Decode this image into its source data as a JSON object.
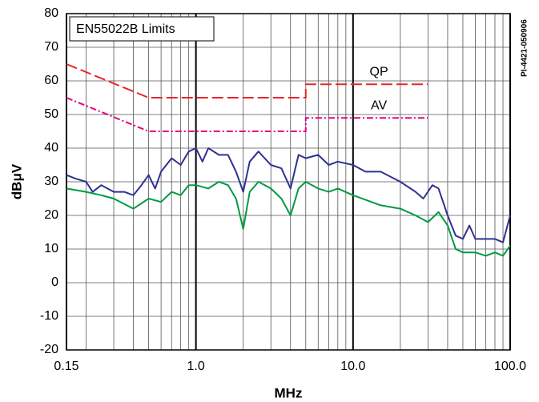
{
  "chart_data": {
    "type": "line",
    "annotation": "EN55022B Limits",
    "side_note": "PI-4421-050906",
    "xlabel": "MHz",
    "ylabel": "dBμV",
    "xscale": "log",
    "xlim": [
      0.15,
      100
    ],
    "xticks": [
      0.15,
      {
        "value": 1,
        "label": "1.0"
      },
      {
        "value": 10,
        "label": "10.0"
      },
      {
        "value": 100,
        "label": "100.0"
      }
    ],
    "xminorticks": [
      0.2,
      0.3,
      0.4,
      0.5,
      0.6,
      0.7,
      0.8,
      0.9,
      2,
      3,
      4,
      5,
      6,
      7,
      8,
      9,
      20,
      30,
      40,
      50,
      60,
      70,
      80,
      90
    ],
    "ylim": [
      -20,
      80
    ],
    "yticks": [
      -20,
      -10,
      0,
      10,
      20,
      30,
      40,
      50,
      60,
      70,
      80
    ],
    "grid": true,
    "series": [
      {
        "name": "QP",
        "color": "#e8262a",
        "dash": "14 5",
        "x": [
          0.15,
          0.5,
          5,
          5,
          30
        ],
        "values": [
          65,
          55,
          55,
          59,
          59
        ]
      },
      {
        "name": "AV",
        "color": "#e4007f",
        "dash": "8 3 2 3",
        "x": [
          0.15,
          0.5,
          5,
          5,
          30
        ],
        "values": [
          55,
          45,
          45,
          49,
          49
        ]
      },
      {
        "color": "#2e3192",
        "x": [
          0.15,
          0.17,
          0.2,
          0.22,
          0.25,
          0.3,
          0.35,
          0.4,
          0.45,
          0.5,
          0.55,
          0.6,
          0.7,
          0.8,
          0.9,
          1.0,
          1.1,
          1.2,
          1.4,
          1.6,
          1.8,
          2.0,
          2.2,
          2.5,
          3.0,
          3.5,
          4.0,
          4.5,
          5.0,
          6.0,
          7.0,
          8.0,
          10,
          12,
          15,
          20,
          25,
          28,
          32,
          35,
          40,
          45,
          50,
          55,
          60,
          70,
          80,
          90,
          100
        ],
        "values": [
          32,
          31,
          30,
          27,
          29,
          27,
          27,
          26,
          29,
          32,
          28,
          33,
          37,
          35,
          39,
          40,
          36,
          40,
          38,
          38,
          33,
          27,
          36,
          39,
          35,
          34,
          28,
          38,
          37,
          38,
          35,
          36,
          35,
          33,
          33,
          30,
          27,
          25,
          29,
          28,
          20,
          14,
          13,
          17,
          13,
          13,
          13,
          12,
          20
        ]
      },
      {
        "color": "#009a44",
        "x": [
          0.15,
          0.2,
          0.25,
          0.3,
          0.4,
          0.5,
          0.6,
          0.7,
          0.8,
          0.9,
          1.0,
          1.2,
          1.4,
          1.6,
          1.8,
          2.0,
          2.2,
          2.5,
          3.0,
          3.5,
          4.0,
          4.5,
          5.0,
          6.0,
          7.0,
          8.0,
          10,
          15,
          20,
          25,
          30,
          35,
          40,
          45,
          50,
          60,
          70,
          80,
          90,
          100
        ],
        "values": [
          28,
          27,
          26,
          25,
          22,
          25,
          24,
          27,
          26,
          29,
          29,
          28,
          30,
          29,
          25,
          16,
          27,
          30,
          28,
          25,
          20,
          28,
          30,
          28,
          27,
          28,
          26,
          23,
          22,
          20,
          18,
          21,
          17,
          10,
          9,
          9,
          8,
          9,
          8,
          11
        ]
      }
    ]
  }
}
